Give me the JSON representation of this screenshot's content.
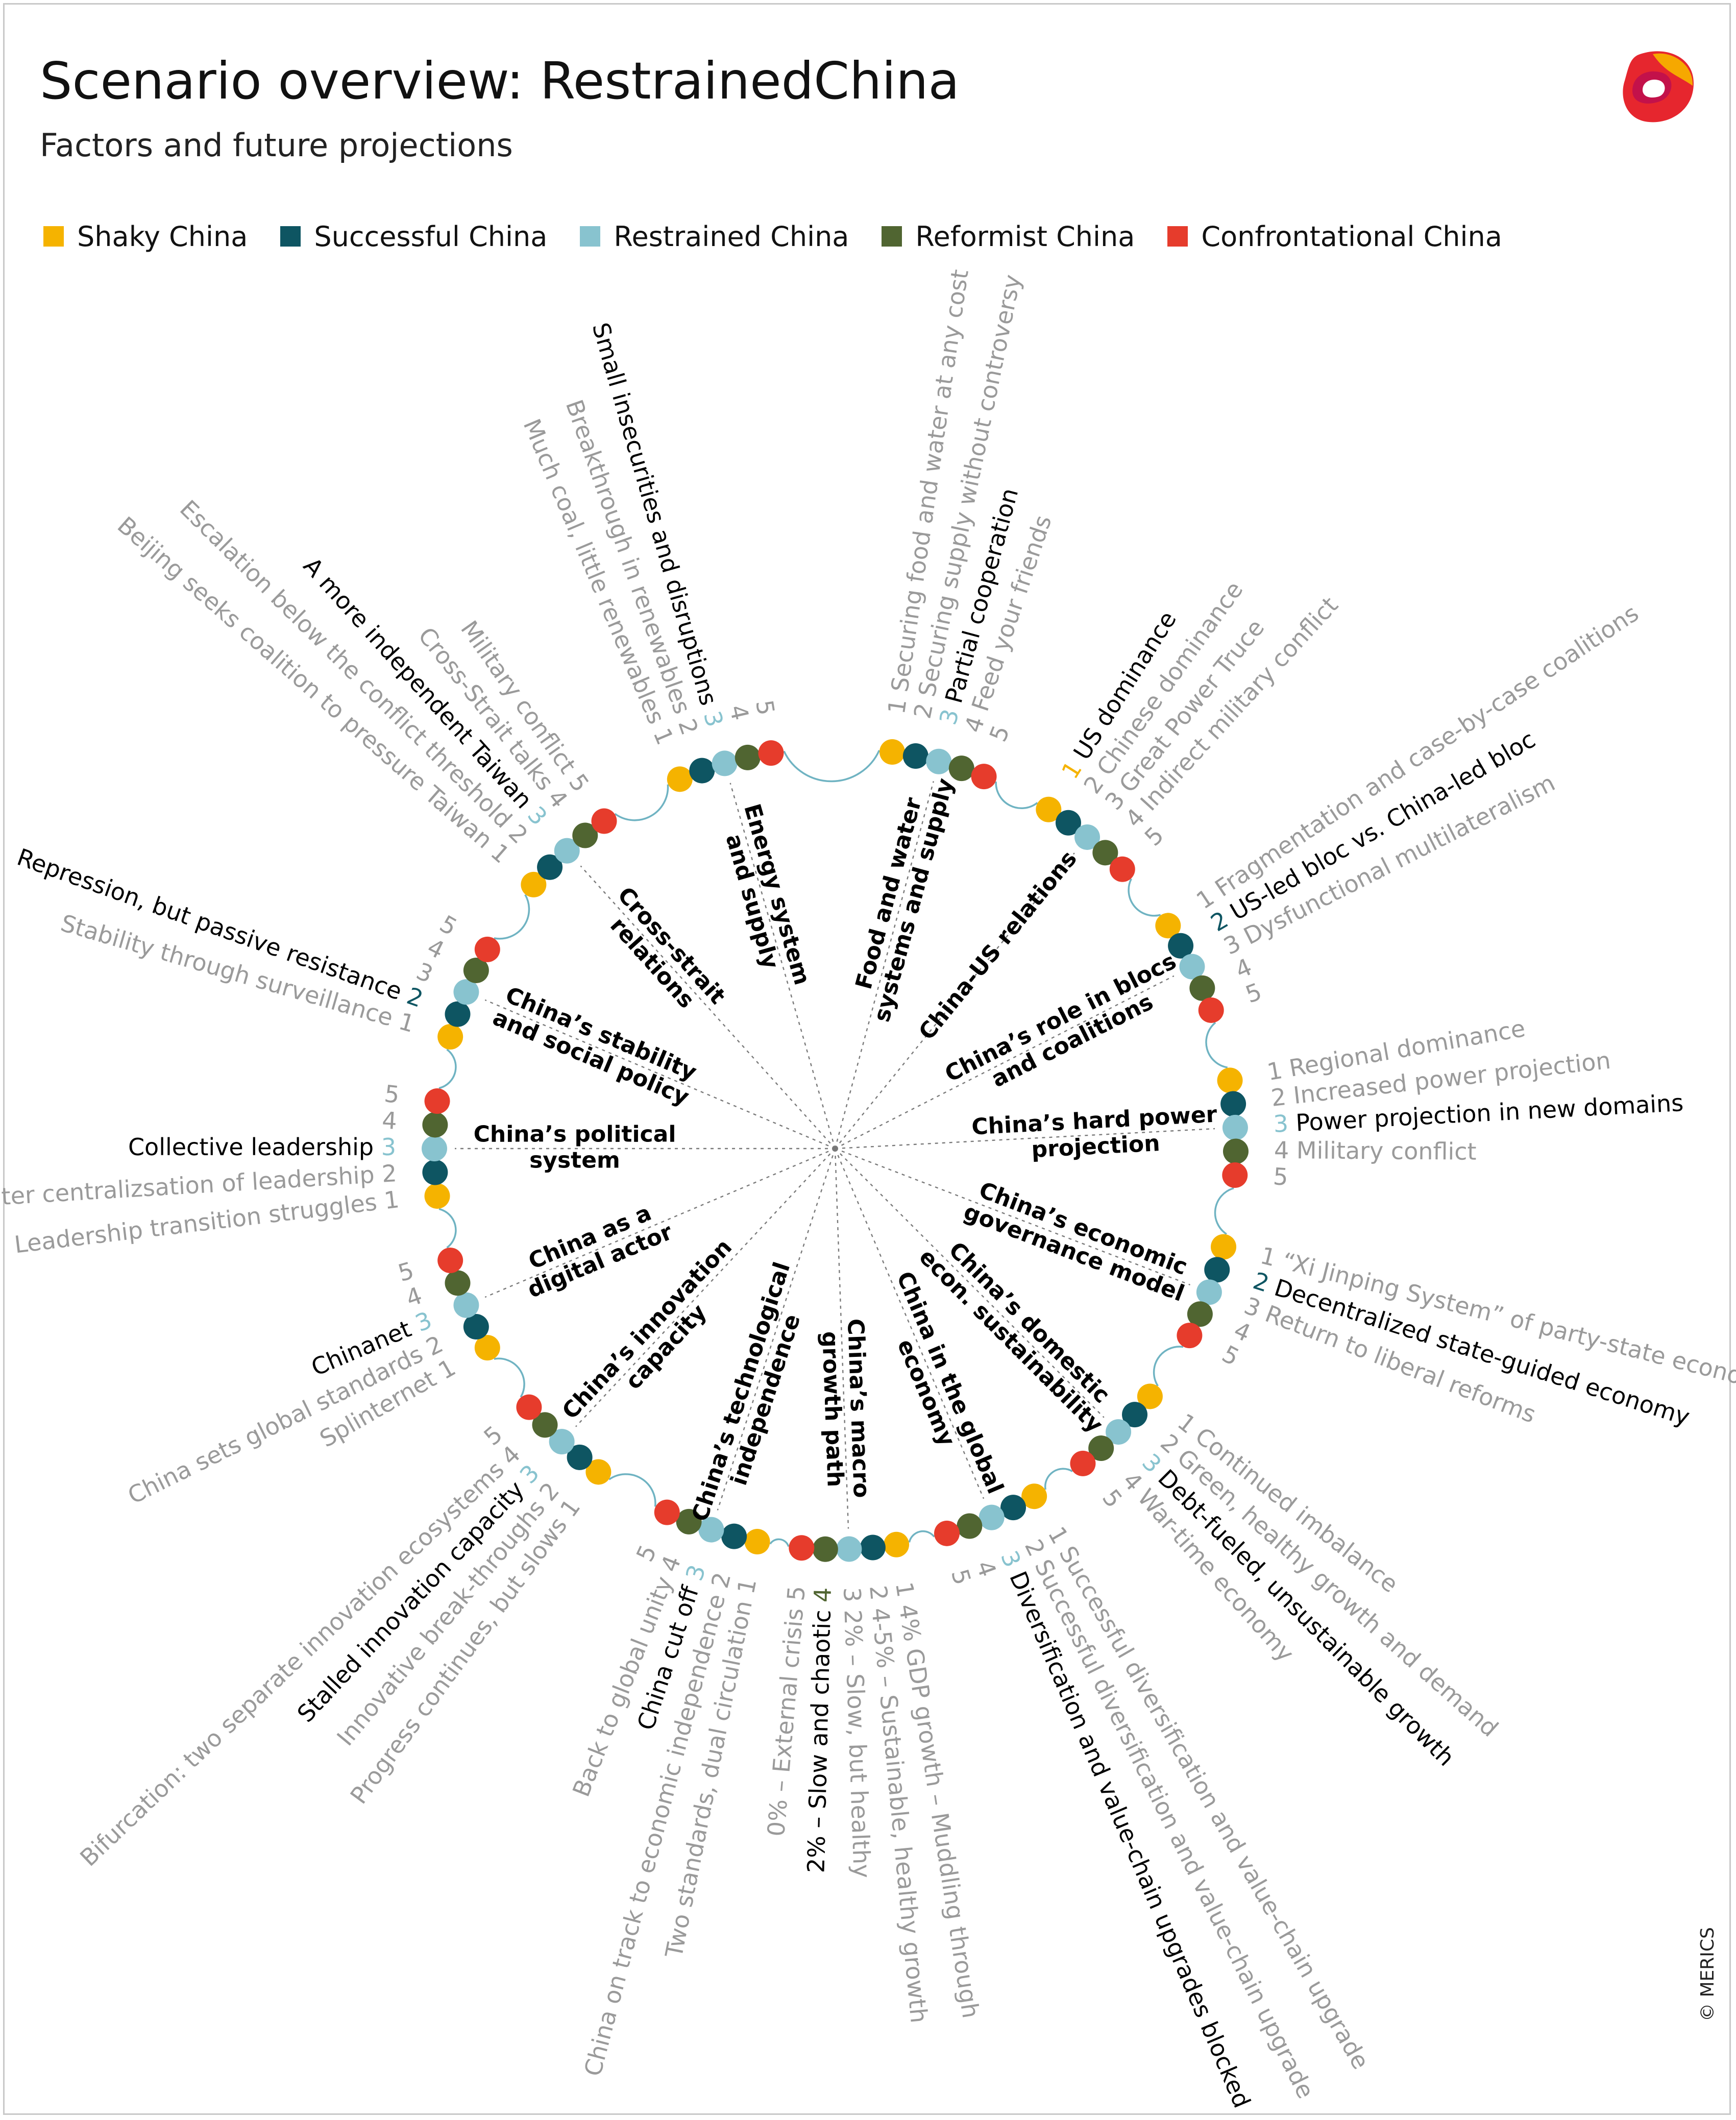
{
  "header": {
    "title": "Scenario overview: RestrainedChina",
    "subtitle": "Factors and future projections",
    "credit": "© MERICS"
  },
  "legend": [
    {
      "label": "Shaky China",
      "color": "#f5b300"
    },
    {
      "label": "Successful China",
      "color": "#0e5562"
    },
    {
      "label": "Restrained China",
      "color": "#88c3cf"
    },
    {
      "label": "Reformist China",
      "color": "#506531"
    },
    {
      "label": "Confrontational China",
      "color": "#e63c2c"
    }
  ],
  "logo": {
    "icon": "merics-logo-icon"
  },
  "colors": {
    "dots": [
      "#f5b300",
      "#0e5562",
      "#88c3cf",
      "#506531",
      "#e63c2c"
    ],
    "text_active": "#000000",
    "text_inactive": "#9a9a9a",
    "arc": "#6fb3c2",
    "spoke": "#7a7a7a"
  },
  "factors": [
    {
      "name": [
        "Food and water",
        "systems and supply"
      ],
      "angle": -75,
      "selected": 3,
      "projections": [
        "Securing food and water at any cost",
        "Securing supply without controversy",
        "Partial cooperation",
        "Feed your friends"
      ]
    },
    {
      "name": [
        "China-US relations"
      ],
      "angle": -51,
      "selected": 1,
      "projections": [
        "US dominance",
        "Chinese dominance",
        "Great Power Truce",
        "Indirect military conflict"
      ]
    },
    {
      "name": [
        "China’s role in blocs",
        "and coalitions"
      ],
      "angle": -27,
      "selected": 2,
      "projections": [
        "Fragmentation and case-by-case coalitions",
        "US-led bloc vs. China-led bloc",
        "Dysfunctional multilateralism"
      ]
    },
    {
      "name": [
        "China’s hard power",
        "projection"
      ],
      "angle": -3,
      "selected": 3,
      "projections": [
        "Regional dominance",
        "Increased power projection",
        "Power projection in new domains",
        "Military conflict"
      ]
    },
    {
      "name": [
        "China’s economic",
        "governance model"
      ],
      "angle": 21,
      "selected": 2,
      "projections": [
        "“Xi Jinping System” of party-state economy",
        "Decentralized state-guided economy",
        "Return to liberal reforms"
      ]
    },
    {
      "name": [
        "China’s domestic",
        "econ. sustainability"
      ],
      "angle": 45,
      "selected": 3,
      "projections": [
        "Continued imbalance",
        "Green, healthy growth and demand",
        "Debt-fueled, unsustainable growth",
        "War-time economy"
      ]
    },
    {
      "name": [
        "China in the global",
        "economy"
      ],
      "angle": 67,
      "selected": 3,
      "projections": [
        "Successful diversification and value-chain upgrade",
        "Successful diversification and value-chain upgrade",
        "Diversification and value-chain upgrades blocked"
      ]
    },
    {
      "name": [
        "China’s macro",
        "growth path"
      ],
      "angle": 88,
      "selected": 4,
      "projections": [
        "4% GDP growth – Muddling through",
        "4-5% – Sustainable, healthy growth",
        "2% – Slow, but healthy",
        "2% – Slow and chaotic",
        "0% – External crisis"
      ]
    },
    {
      "name": [
        "China’s technological",
        "independence"
      ],
      "angle": 108,
      "selected": 3,
      "projections": [
        "Two standards, dual circulation",
        "China on track to economic independence",
        "China cut off",
        "Back to global unity"
      ]
    },
    {
      "name": [
        "China’s innovation",
        "capacity"
      ],
      "angle": 133,
      "selected": 3,
      "projections": [
        "Progress continues, but slows",
        "Innovative break-throughs",
        "Stalled innovation capacity",
        "Bifurcation: two separate innovation ecosystems"
      ]
    },
    {
      "name": [
        "China as a",
        "digital actor"
      ],
      "angle": 157,
      "selected": 3,
      "projections": [
        "Splinternet",
        "China sets global standards",
        "Chinanet"
      ]
    },
    {
      "name": [
        "China’s political",
        "system"
      ],
      "angle": 180,
      "selected": 3,
      "projections": [
        "Leadership transition struggles",
        "Greater centralizsation of leadership",
        "Collective leadership"
      ]
    },
    {
      "name": [
        "China’s stability",
        "and social policy"
      ],
      "angle": 203,
      "selected": 2,
      "projections": [
        "Stability through surveillance",
        "Repression, but passive resistance"
      ]
    },
    {
      "name": [
        "Cross-strait",
        "relations"
      ],
      "angle": 228,
      "selected": 3,
      "projections": [
        "Beijing seeks coalition to pressure Taiwan",
        "Escalation below the conflict threshold",
        "A more independent Taiwan",
        "Cross-Strait talks",
        "Military conflict"
      ]
    },
    {
      "name": [
        "Energy system",
        "and supply"
      ],
      "angle": 254,
      "selected": 3,
      "projections": [
        "Much coal, little renewables",
        "Breakthrough in renewables",
        "Small insecurities and disruptions"
      ]
    }
  ]
}
